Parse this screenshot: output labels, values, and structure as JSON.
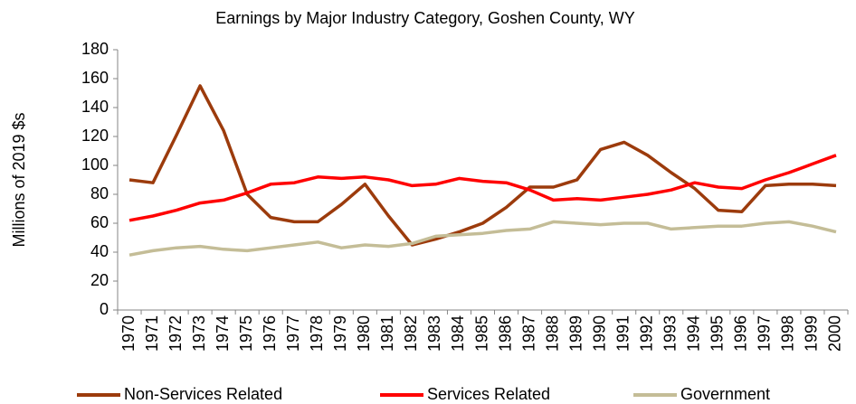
{
  "chart_data": {
    "type": "line",
    "title": "Earnings by Major Industry Category, Goshen County, WY",
    "y_label": "Millions of 2019 $s",
    "categories": [
      "1970",
      "1971",
      "1972",
      "1973",
      "1974",
      "1975",
      "1976",
      "1977",
      "1978",
      "1979",
      "1980",
      "1981",
      "1982",
      "1983",
      "1984",
      "1985",
      "1986",
      "1987",
      "1988",
      "1989",
      "1990",
      "1991",
      "1992",
      "1993",
      "1994",
      "1995",
      "1996",
      "1997",
      "1998",
      "1999",
      "2000"
    ],
    "series": [
      {
        "name": "Non-Services Related",
        "color": "#9c3b0c",
        "values": [
          90,
          88,
          121,
          155,
          124,
          80,
          64,
          61,
          61,
          73,
          87,
          65,
          45,
          49,
          54,
          60,
          71,
          85,
          85,
          90,
          111,
          116,
          107,
          95,
          84,
          69,
          68,
          86,
          87,
          87,
          86
        ]
      },
      {
        "name": "Services Related",
        "color": "#ff0000",
        "values": [
          62,
          65,
          69,
          74,
          76,
          81,
          87,
          88,
          92,
          91,
          92,
          90,
          86,
          87,
          91,
          89,
          88,
          83,
          76,
          77,
          76,
          78,
          80,
          83,
          88,
          85,
          84,
          90,
          95,
          101,
          107
        ]
      },
      {
        "name": "Government",
        "color": "#c4bd97",
        "values": [
          38,
          41,
          43,
          44,
          42,
          41,
          43,
          45,
          47,
          43,
          45,
          44,
          46,
          51,
          52,
          53,
          55,
          56,
          61,
          60,
          59,
          60,
          60,
          56,
          57,
          58,
          58,
          60,
          61,
          58,
          54
        ]
      }
    ],
    "ylim": [
      0,
      180
    ],
    "yticks": [
      0,
      20,
      40,
      60,
      80,
      100,
      120,
      140,
      160,
      180
    ],
    "grid": false,
    "legend": "bottom"
  }
}
